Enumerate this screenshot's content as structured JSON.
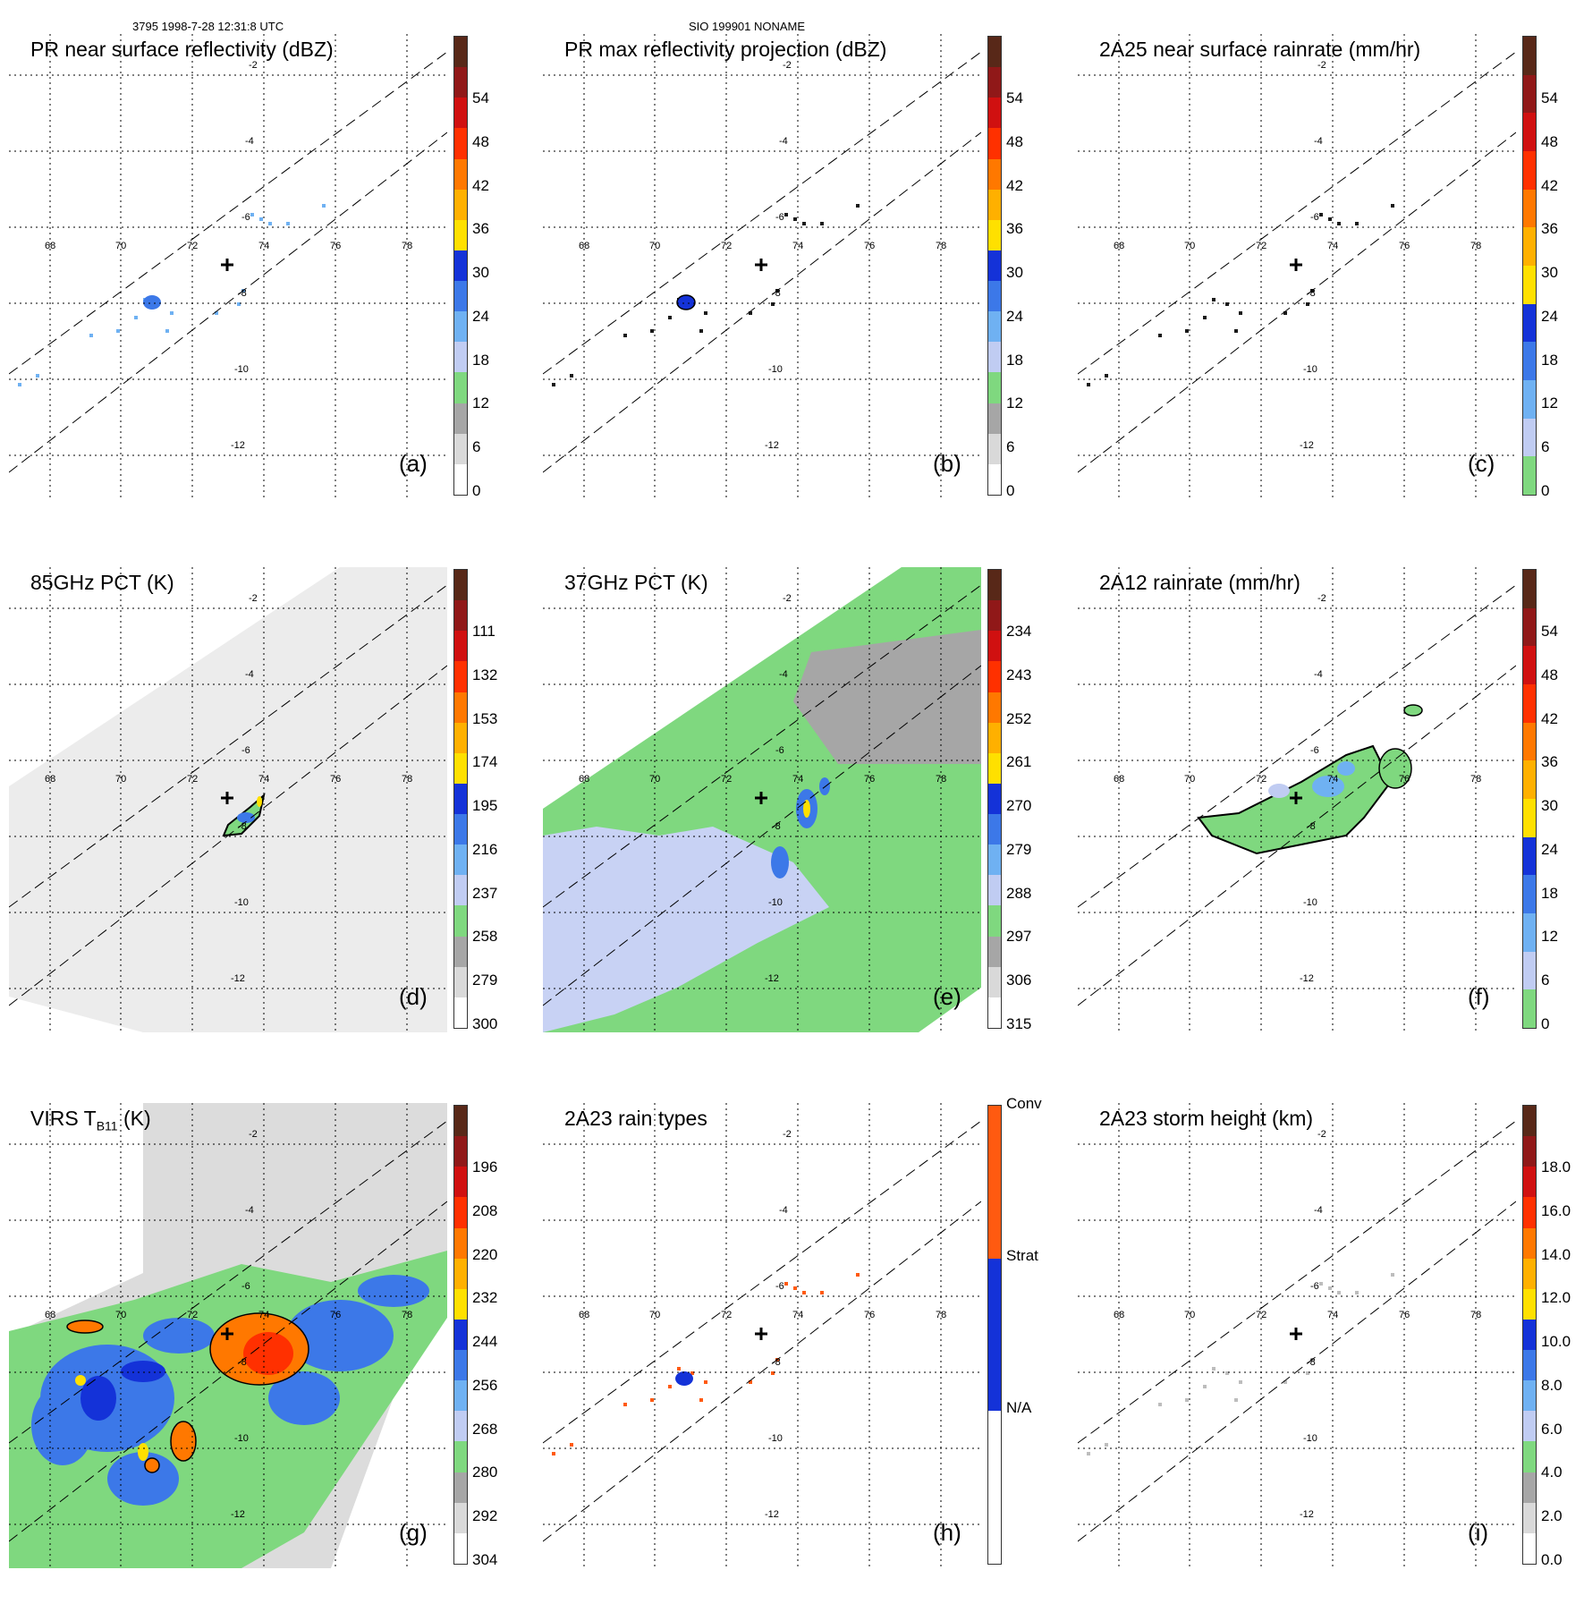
{
  "header": {
    "left": "3795 1998-7-28 12:31:8 UTC",
    "center": "SIO 199901 NONAME"
  },
  "axes": {
    "lon_labels": [
      "68",
      "70",
      "72",
      "74",
      "76",
      "78"
    ],
    "lat_labels": [
      "-2",
      "-4",
      "-6",
      "-8",
      "-10",
      "-12"
    ]
  },
  "palettes": {
    "standard": [
      "#ffffff",
      "#d9d9d9",
      "#a6a6a6",
      "#7fd87f",
      "#c0ccf2",
      "#6fb1f2",
      "#3c78e8",
      "#1432d8",
      "#ffe000",
      "#ffb000",
      "#ff7800",
      "#ff3000",
      "#d01010",
      "#901818",
      "#582818"
    ],
    "rain": [
      "#7fd87f",
      "#c0ccf2",
      "#6fb1f2",
      "#3c78e8",
      "#1432d8",
      "#ffe000",
      "#ffb000",
      "#ff7800",
      "#ff3000",
      "#d01010",
      "#901818",
      "#582818"
    ],
    "raintypes": [
      "#ffffff",
      "#1432d8",
      "#ff5a10"
    ]
  },
  "panels": [
    {
      "id": "a",
      "title": "PR near surface reflectivity (dBZ)",
      "label": "(a)",
      "palette": "standard",
      "ticks": [
        "0",
        "6",
        "12",
        "18",
        "24",
        "30",
        "36",
        "42",
        "48",
        "54"
      ]
    },
    {
      "id": "b",
      "title": "PR max reflectivity projection (dBZ)",
      "label": "(b)",
      "palette": "standard",
      "ticks": [
        "0",
        "6",
        "12",
        "18",
        "24",
        "30",
        "36",
        "42",
        "48",
        "54"
      ]
    },
    {
      "id": "c",
      "title": "2A25 near surface rainrate (mm/hr)",
      "label": "(c)",
      "palette": "rain",
      "ticks": [
        "0",
        "6",
        "12",
        "18",
        "24",
        "30",
        "36",
        "42",
        "48",
        "54"
      ]
    },
    {
      "id": "d",
      "title": "85GHz PCT (K)",
      "label": "(d)",
      "palette": "standard",
      "ticks": [
        "300",
        "279",
        "258",
        "237",
        "216",
        "195",
        "174",
        "153",
        "132",
        "111"
      ]
    },
    {
      "id": "e",
      "title": "37GHz PCT (K)",
      "label": "(e)",
      "palette": "standard",
      "ticks": [
        "315",
        "306",
        "297",
        "288",
        "279",
        "270",
        "261",
        "252",
        "243",
        "234"
      ]
    },
    {
      "id": "f",
      "title": "2A12 rainrate (mm/hr)",
      "label": "(f)",
      "palette": "rain",
      "ticks": [
        "0",
        "6",
        "12",
        "18",
        "24",
        "30",
        "36",
        "42",
        "48",
        "54"
      ]
    },
    {
      "id": "g",
      "title_main": "VIRS T",
      "title_sub": "B11",
      "title_unit": " (K)",
      "label": "(g)",
      "palette": "standard",
      "ticks": [
        "304",
        "292",
        "280",
        "268",
        "256",
        "244",
        "232",
        "220",
        "208",
        "196"
      ]
    },
    {
      "id": "h",
      "title": "2A23 rain types",
      "label": "(h)",
      "palette": "raintypes",
      "ticks": [
        "N/A",
        "Strat",
        "Conv"
      ]
    },
    {
      "id": "i",
      "title": "2A23 storm height (km)",
      "label": "(i)",
      "palette": "standard",
      "ticks": [
        "0.0",
        "2.0",
        "4.0",
        "6.0",
        "8.0",
        "10.0",
        "12.0",
        "14.0",
        "16.0",
        "18.0"
      ]
    }
  ]
}
